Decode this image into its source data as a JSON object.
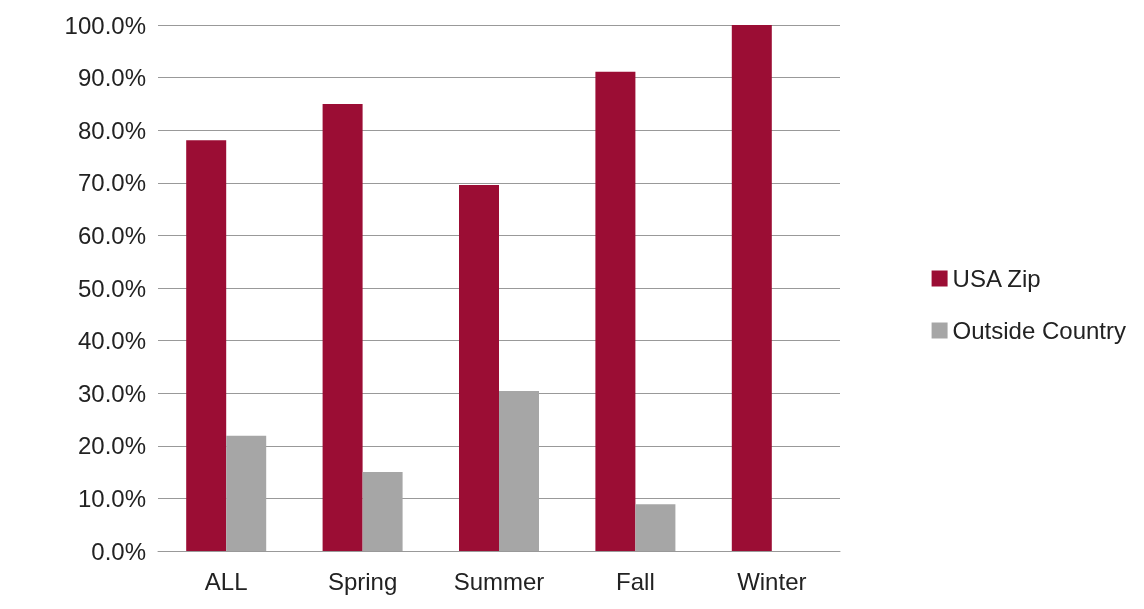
{
  "chart_data": {
    "type": "bar",
    "categories": [
      "ALL",
      "Spring",
      "Summer",
      "Fall",
      "Winter"
    ],
    "series": [
      {
        "name": "USA Zip",
        "color": "#9b0d34",
        "values": [
          78.1,
          85.0,
          69.6,
          91.1,
          100.0
        ]
      },
      {
        "name": "Outside Country",
        "color": "#a6a6a6",
        "values": [
          21.9,
          15.0,
          30.4,
          8.9,
          0.0
        ]
      }
    ],
    "ylim": [
      0,
      100
    ],
    "yticks": [
      {
        "value": 0,
        "label": "0.0%"
      },
      {
        "value": 10,
        "label": "10.0%"
      },
      {
        "value": 20,
        "label": "20.0%"
      },
      {
        "value": 30,
        "label": "30.0%"
      },
      {
        "value": 40,
        "label": "40.0%"
      },
      {
        "value": 50,
        "label": "50.0%"
      },
      {
        "value": 60,
        "label": "60.0%"
      },
      {
        "value": 70,
        "label": "70.0%"
      },
      {
        "value": 80,
        "label": "80.0%"
      },
      {
        "value": 90,
        "label": "90.0%"
      },
      {
        "value": 100,
        "label": "100.0%"
      }
    ],
    "grid": "y",
    "legend": "right"
  }
}
